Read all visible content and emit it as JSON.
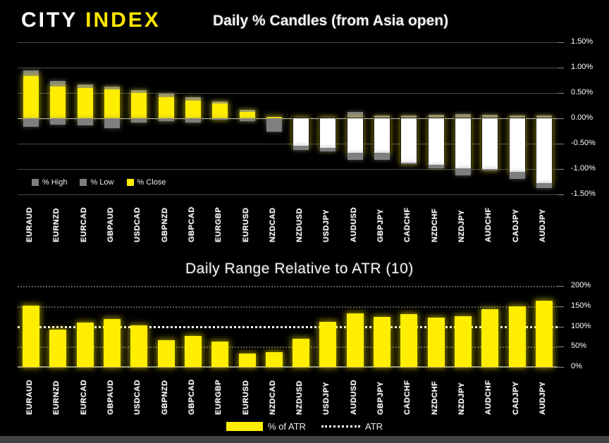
{
  "logo": {
    "city": "CITY",
    "index": "INDEX"
  },
  "colors": {
    "accent_yellow": "#FFEE00",
    "logo_yellow": "#FFE600",
    "body_white": "#FFFFFF",
    "wick_gray": "#7F7F7F",
    "background": "#000000",
    "grid_gray": "#4A4A4A",
    "atr_line_white": "#F4F4F4"
  },
  "chart_data": [
    {
      "type": "bar",
      "subtype": "candle-from-open",
      "title": "Daily % Candles (from Asia open)",
      "categories": [
        "EURAUD",
        "EURNZD",
        "EURCAD",
        "GBPAUD",
        "USDCAD",
        "GBPNZD",
        "GBPCAD",
        "EURGBP",
        "EURUSD",
        "NZDCAD",
        "NZDUSD",
        "USDJPY",
        "AUDUSD",
        "GBPJPY",
        "CADCHF",
        "NZDCHF",
        "NZDJPY",
        "AUDCHF",
        "CADJPY",
        "AUDJPY"
      ],
      "series": [
        {
          "name": "% High",
          "values": [
            0.94,
            0.74,
            0.67,
            0.62,
            0.55,
            0.48,
            0.41,
            0.33,
            0.17,
            0.04,
            0.02,
            0.02,
            0.12,
            0.05,
            0.06,
            0.07,
            0.08,
            0.07,
            0.05,
            0.05
          ]
        },
        {
          "name": "% Low",
          "values": [
            -0.17,
            -0.13,
            -0.14,
            -0.2,
            -0.08,
            -0.05,
            -0.08,
            -0.03,
            -0.05,
            -0.26,
            -0.62,
            -0.65,
            -0.82,
            -0.82,
            -0.9,
            -0.98,
            -1.12,
            -1.03,
            -1.19,
            -1.37
          ]
        },
        {
          "name": "% Close",
          "values": [
            0.83,
            0.62,
            0.6,
            0.57,
            0.5,
            0.41,
            0.35,
            0.29,
            0.12,
            0.03,
            -0.54,
            -0.58,
            -0.68,
            -0.68,
            -0.87,
            -0.91,
            -0.98,
            -1.0,
            -1.05,
            -1.28
          ]
        }
      ],
      "ylim": [
        -1.5,
        1.5
      ],
      "ytick_values": [
        1.5,
        1.0,
        0.5,
        0.0,
        -0.5,
        -1.0,
        -1.5
      ],
      "ytick_labels": [
        "1.50%",
        "1.00%",
        "0.50%",
        "0.00%",
        "-0.50%",
        "-1.00%",
        "-1.50%"
      ],
      "axis_side": "right",
      "grid": "solid",
      "legend_items": [
        {
          "label": "% High",
          "swatch_color": "#7F7F7F"
        },
        {
          "label": "% Low",
          "swatch_color": "#7F7F7F"
        },
        {
          "label": "% Close",
          "swatch_color": "#FFEE00"
        }
      ],
      "legend_position": "bottom-left-inside"
    },
    {
      "type": "bar",
      "title": "Daily Range Relative to ATR (10)",
      "categories": [
        "EURAUD",
        "EURNZD",
        "EURCAD",
        "GBPAUD",
        "USDCAD",
        "GBPNZD",
        "GBPCAD",
        "EURGBP",
        "EURUSD",
        "NZDCAD",
        "NZDUSD",
        "USDJPY",
        "AUDUSD",
        "GBPJPY",
        "CADCHF",
        "NZDCHF",
        "NZDJPY",
        "AUDCHF",
        "CADJPY",
        "AUDJPY"
      ],
      "series": [
        {
          "name": "% of ATR",
          "values": [
            152,
            93,
            109,
            119,
            103,
            66,
            77,
            62,
            33,
            37,
            70,
            112,
            132,
            124,
            130,
            121,
            125,
            143,
            149,
            163
          ]
        }
      ],
      "reference_line": {
        "name": "ATR",
        "value": 100,
        "style": "dotted-white"
      },
      "ylim": [
        0,
        200
      ],
      "ytick_values": [
        200,
        150,
        100,
        50,
        0
      ],
      "ytick_labels": [
        "200%",
        "150%",
        "100%",
        "50%",
        "0%"
      ],
      "axis_side": "right",
      "grid": "dotted",
      "legend_items": [
        {
          "label": "% of ATR",
          "swatch_color": "#FFEE00",
          "swatch": "bar"
        },
        {
          "label": "ATR",
          "swatch": "dotted-line"
        }
      ],
      "legend_position": "bottom-center"
    }
  ]
}
